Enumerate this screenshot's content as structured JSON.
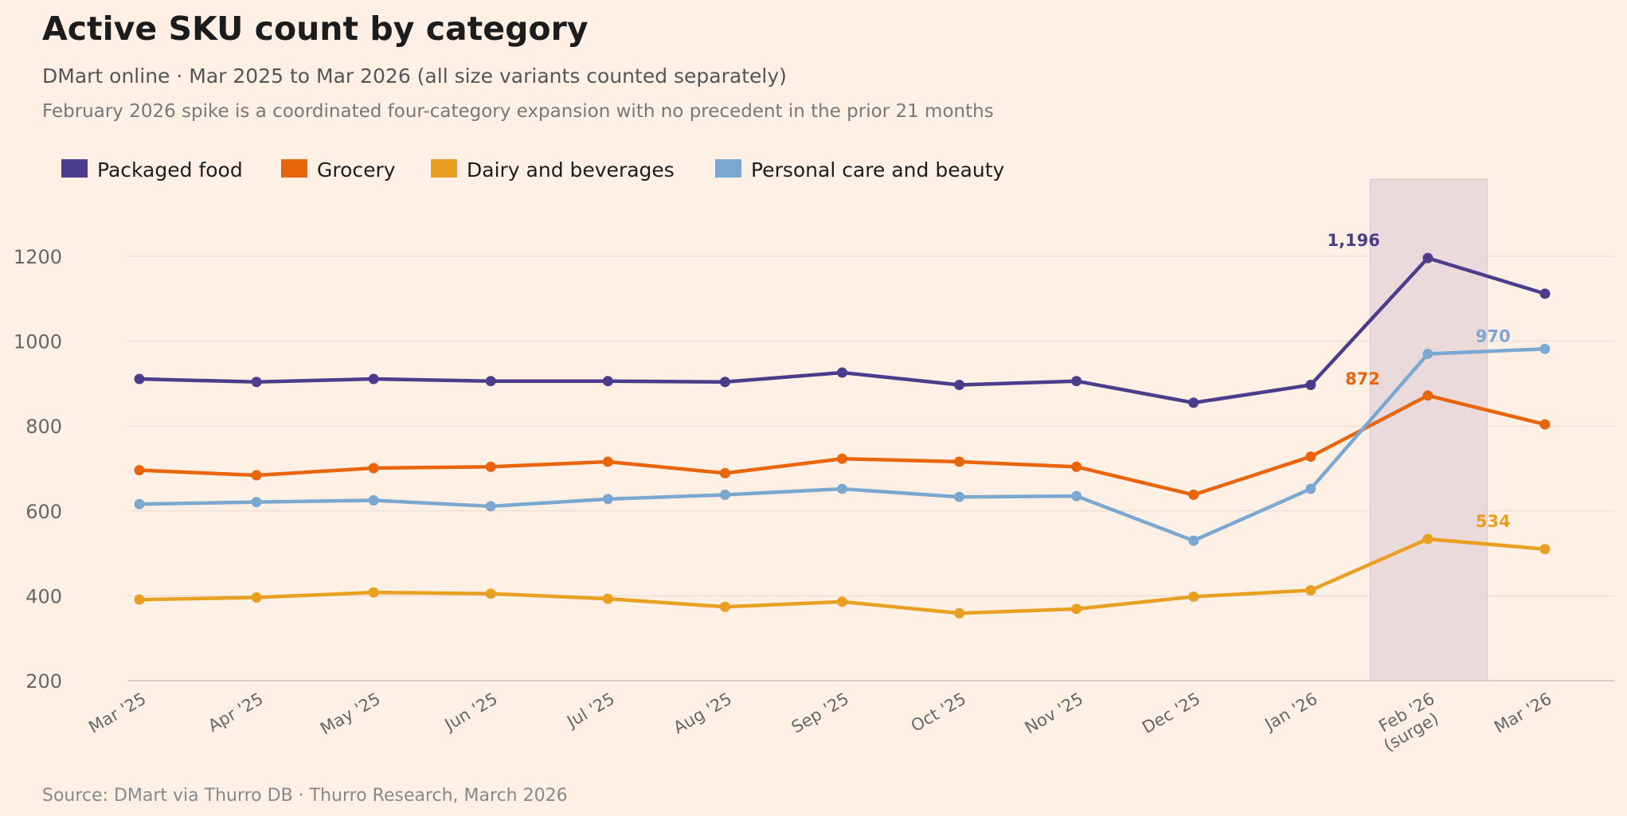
{
  "chart_data": {
    "type": "line",
    "title": "Active SKU count by category",
    "subtitle": "DMart online · Mar 2025 to Mar 2026 (all size variants counted separately)",
    "note": "February 2026 spike is a coordinated four-category expansion with no precedent in the prior 21 months",
    "source": "Source: DMart via Thurro DB · Thurro Research, March 2026",
    "xlabel": "",
    "ylabel": "",
    "ylim": [
      200,
      1380
    ],
    "yticks": [
      200,
      400,
      600,
      800,
      1000,
      1200
    ],
    "grid": true,
    "legend_position": "top-left",
    "categories": [
      "Mar '25",
      "Apr '25",
      "May '25",
      "Jun '25",
      "Jul '25",
      "Aug '25",
      "Sep '25",
      "Oct '25",
      "Nov '25",
      "Dec '25",
      "Jan '26",
      "Feb '26\n(surge)",
      "Mar '26"
    ],
    "highlight_category_index": 11,
    "series": [
      {
        "name": "Packaged food",
        "color": "#4b3d8c",
        "values": [
          911,
          904,
          911,
          906,
          906,
          904,
          926,
          897,
          906,
          855,
          897,
          1196,
          1112
        ]
      },
      {
        "name": "Grocery",
        "color": "#e8650c",
        "values": [
          696,
          684,
          701,
          704,
          716,
          689,
          723,
          716,
          704,
          638,
          728,
          872,
          804
        ]
      },
      {
        "name": "Dairy and beverages",
        "color": "#e9a021",
        "values": [
          391,
          396,
          408,
          405,
          393,
          374,
          386,
          359,
          369,
          398,
          413,
          534,
          510
        ]
      },
      {
        "name": "Personal care and beauty",
        "color": "#7aa8d0",
        "values": [
          616,
          621,
          625,
          611,
          628,
          638,
          652,
          633,
          635,
          530,
          652,
          970,
          982
        ]
      }
    ],
    "annotations": [
      {
        "series": 0,
        "index": 11,
        "text": "1,196",
        "color": "#4b3d8c"
      },
      {
        "series": 1,
        "index": 11,
        "text": "872",
        "color": "#e8650c"
      },
      {
        "series": 3,
        "index": 11,
        "text": "970",
        "color": "#7aa8d0"
      },
      {
        "series": 2,
        "index": 11,
        "text": "534",
        "color": "#e9a021"
      }
    ]
  }
}
